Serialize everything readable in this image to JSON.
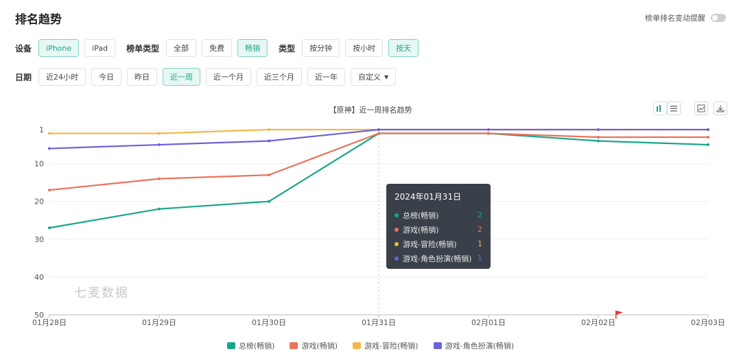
{
  "header": {
    "title": "排名趋势",
    "toggle_label": "榜单排名变动提醒"
  },
  "filters": {
    "device_label": "设备",
    "devices": [
      "iPhone",
      "iPad"
    ],
    "list_type_label": "榜单类型",
    "list_types": [
      "全部",
      "免费",
      "畅销"
    ],
    "type_label": "类型",
    "types": [
      "按分钟",
      "按小时",
      "按天"
    ],
    "date_label": "日期",
    "dates": [
      "近24小时",
      "今日",
      "昨日",
      "近一周",
      "近一个月",
      "近三个月",
      "近一年",
      "自定义"
    ],
    "active": {
      "device": "iPhone",
      "list_type": "畅销",
      "type": "按天",
      "date": "近一周"
    }
  },
  "chart_title": "【原神】近一周排名趋势",
  "watermark": "七麦数据",
  "tooltip": {
    "date": "2024年01月31日",
    "rows": [
      {
        "name": "总榜(畅销)",
        "value": "2",
        "color": "#1aa58a"
      },
      {
        "name": "游戏(畅销)",
        "value": "2",
        "color": "#e8735a"
      },
      {
        "name": "游戏-冒险(畅销)",
        "value": "1",
        "color": "#f2b84b"
      },
      {
        "name": "游戏-角色扮演(畅销)",
        "value": "1",
        "color": "#6b63d8"
      }
    ]
  },
  "chart_data": {
    "type": "line",
    "title": "【原神】近一周排名趋势",
    "categories": [
      "01月28日",
      "01月29日",
      "01月30日",
      "01月31日",
      "02月01日",
      "02月02日",
      "02月03日"
    ],
    "ylim": [
      1,
      50
    ],
    "y_inverted": true,
    "yticks": [
      1,
      10,
      20,
      30,
      40,
      50
    ],
    "series": [
      {
        "name": "总榜(畅销)",
        "color": "#1aa58a",
        "values": [
          27,
          22,
          20,
          2,
          2,
          4,
          5
        ]
      },
      {
        "name": "游戏(畅销)",
        "color": "#e8735a",
        "values": [
          17,
          14,
          13,
          2,
          2,
          3,
          3
        ]
      },
      {
        "name": "游戏-冒险(畅销)",
        "color": "#f2b84b",
        "values": [
          2,
          2,
          1,
          1,
          1,
          1,
          1
        ]
      },
      {
        "name": "游戏-角色扮演(畅销)",
        "color": "#6b63d8",
        "values": [
          6,
          5,
          4,
          1,
          1,
          1,
          1
        ]
      }
    ],
    "legend_position": "bottom",
    "grid": true
  }
}
